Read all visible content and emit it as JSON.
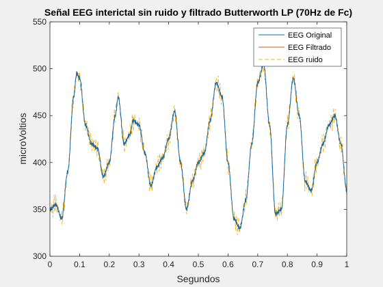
{
  "chart_data": {
    "type": "line",
    "title": "Señal EEG interictal sin ruido y filtrado Butterworth LP (70Hz de Fc)",
    "xlabel": "Segundos",
    "ylabel": "microVoltios",
    "xlim": [
      0,
      1
    ],
    "ylim": [
      300,
      550
    ],
    "xticks": [
      0,
      0.1,
      0.2,
      0.3,
      0.4,
      0.5,
      0.6,
      0.7,
      0.8,
      0.9,
      1
    ],
    "xtick_labels": [
      "0",
      "0.1",
      "0.2",
      "0.3",
      "0.4",
      "0.5",
      "0.6",
      "0.7",
      "0.8",
      "0.9",
      "1"
    ],
    "yticks": [
      300,
      350,
      400,
      450,
      500,
      550
    ],
    "ytick_labels": [
      "300",
      "350",
      "400",
      "450",
      "500",
      "550"
    ],
    "grid": false,
    "legend_position": "top-right",
    "series": [
      {
        "name": "EEG Original",
        "color": "#0072BD",
        "style": "solid",
        "x": [
          0,
          0.02,
          0.04,
          0.06,
          0.08,
          0.09,
          0.1,
          0.12,
          0.14,
          0.16,
          0.18,
          0.2,
          0.22,
          0.23,
          0.25,
          0.27,
          0.28,
          0.3,
          0.32,
          0.34,
          0.36,
          0.38,
          0.4,
          0.42,
          0.44,
          0.46,
          0.48,
          0.5,
          0.52,
          0.54,
          0.56,
          0.58,
          0.6,
          0.62,
          0.64,
          0.66,
          0.68,
          0.7,
          0.72,
          0.74,
          0.76,
          0.78,
          0.8,
          0.82,
          0.84,
          0.86,
          0.88,
          0.9,
          0.92,
          0.94,
          0.96,
          0.98,
          1
        ],
        "y": [
          350,
          355,
          340,
          390,
          470,
          495,
          490,
          440,
          420,
          415,
          385,
          400,
          450,
          470,
          420,
          430,
          445,
          440,
          410,
          375,
          395,
          405,
          425,
          455,
          400,
          350,
          380,
          400,
          410,
          445,
          485,
          470,
          400,
          340,
          330,
          360,
          420,
          485,
          505,
          440,
          345,
          350,
          440,
          490,
          450,
          380,
          370,
          400,
          420,
          440,
          450,
          420,
          370
        ]
      },
      {
        "name": "EEG Filtrado",
        "color": "#D95319",
        "style": "solid",
        "x": [
          0,
          0.02,
          0.04,
          0.06,
          0.08,
          0.09,
          0.1,
          0.12,
          0.14,
          0.16,
          0.18,
          0.2,
          0.22,
          0.23,
          0.25,
          0.27,
          0.28,
          0.3,
          0.32,
          0.34,
          0.36,
          0.38,
          0.4,
          0.42,
          0.44,
          0.46,
          0.48,
          0.5,
          0.52,
          0.54,
          0.56,
          0.58,
          0.6,
          0.62,
          0.64,
          0.66,
          0.68,
          0.7,
          0.72,
          0.74,
          0.76,
          0.78,
          0.8,
          0.82,
          0.84,
          0.86,
          0.88,
          0.9,
          0.92,
          0.94,
          0.96,
          0.98,
          1
        ],
        "y": [
          350,
          355,
          340,
          390,
          470,
          495,
          490,
          440,
          420,
          415,
          385,
          400,
          450,
          470,
          420,
          430,
          445,
          440,
          410,
          375,
          395,
          405,
          425,
          455,
          400,
          350,
          380,
          400,
          410,
          445,
          485,
          470,
          400,
          340,
          330,
          360,
          420,
          485,
          505,
          440,
          345,
          350,
          440,
          490,
          450,
          380,
          370,
          400,
          420,
          440,
          450,
          420,
          370
        ]
      },
      {
        "name": "EEG ruido",
        "color": "#EDB120",
        "style": "dashed",
        "x": [
          0,
          0.02,
          0.04,
          0.06,
          0.08,
          0.09,
          0.1,
          0.12,
          0.14,
          0.16,
          0.18,
          0.2,
          0.22,
          0.23,
          0.25,
          0.27,
          0.28,
          0.3,
          0.32,
          0.34,
          0.36,
          0.38,
          0.4,
          0.42,
          0.44,
          0.46,
          0.48,
          0.5,
          0.52,
          0.54,
          0.56,
          0.58,
          0.6,
          0.62,
          0.64,
          0.66,
          0.68,
          0.7,
          0.72,
          0.74,
          0.76,
          0.78,
          0.8,
          0.82,
          0.84,
          0.86,
          0.88,
          0.9,
          0.92,
          0.94,
          0.96,
          0.98,
          1
        ],
        "y": [
          350,
          355,
          340,
          390,
          470,
          495,
          490,
          440,
          420,
          415,
          385,
          400,
          450,
          470,
          420,
          430,
          445,
          440,
          410,
          375,
          395,
          405,
          425,
          455,
          400,
          350,
          380,
          400,
          410,
          445,
          485,
          470,
          400,
          340,
          330,
          360,
          420,
          485,
          505,
          440,
          345,
          350,
          440,
          490,
          450,
          380,
          370,
          400,
          420,
          440,
          450,
          420,
          370
        ]
      }
    ]
  }
}
